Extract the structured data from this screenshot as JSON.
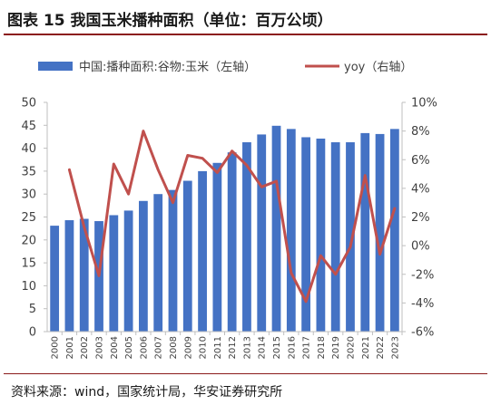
{
  "figure_title": "图表 15 我国玉米播种面积（单位：百万公顷）",
  "source_note": "资料来源：wind，国家统计局，华安证券研究所",
  "colors": {
    "bar": "#4472c4",
    "line": "#c0504d",
    "axis": "#bfbfbf",
    "text": "#404040",
    "rule": "#8b1a1a"
  },
  "chart_data": {
    "type": "bar+line",
    "categories": [
      "2000",
      "2001",
      "2002",
      "2003",
      "2004",
      "2005",
      "2006",
      "2007",
      "2008",
      "2009",
      "2010",
      "2011",
      "2012",
      "2013",
      "2014",
      "2015",
      "2016",
      "2017",
      "2018",
      "2019",
      "2020",
      "2021",
      "2022",
      "2023"
    ],
    "series": [
      {
        "name": "中国:播种面积:谷物:玉米（左轴）",
        "type": "bar",
        "axis": "left",
        "values": [
          23.1,
          24.3,
          24.6,
          24.1,
          25.4,
          26.4,
          28.5,
          30.0,
          30.9,
          32.9,
          35.0,
          36.8,
          39.1,
          41.3,
          43.0,
          44.9,
          44.2,
          42.4,
          42.1,
          41.3,
          41.3,
          43.3,
          43.1,
          44.2
        ]
      },
      {
        "name": "yoy（右轴）",
        "type": "line",
        "axis": "right",
        "values": [
          null,
          5.3,
          1.3,
          -2.1,
          5.7,
          3.6,
          8.0,
          5.3,
          3.0,
          6.3,
          6.1,
          5.1,
          6.6,
          5.6,
          4.1,
          4.5,
          -1.9,
          -3.9,
          -0.7,
          -2.0,
          -0.1,
          4.9,
          -0.6,
          2.6
        ]
      }
    ],
    "y_left": {
      "min": 0,
      "max": 50,
      "step": 5,
      "ticks": [
        "0",
        "5",
        "10",
        "15",
        "20",
        "25",
        "30",
        "35",
        "40",
        "45",
        "50"
      ]
    },
    "y_right": {
      "min": -6,
      "max": 10,
      "step": 2,
      "ticks": [
        "-6%",
        "-4%",
        "-2%",
        "0%",
        "2%",
        "4%",
        "6%",
        "8%",
        "10%"
      ]
    },
    "grid": false,
    "legend_position": "top"
  }
}
